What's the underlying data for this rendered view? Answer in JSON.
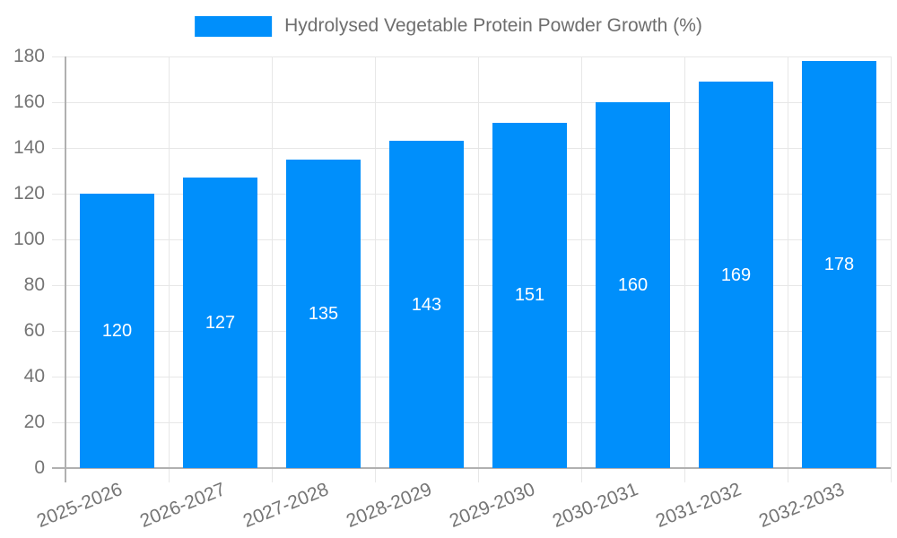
{
  "legend": {
    "label": "Hydrolysed Vegetable Protein Powder Growth (%)"
  },
  "chart_data": {
    "type": "bar",
    "title": "Hydrolysed Vegetable Protein Powder Growth (%)",
    "categories": [
      "2025-2026",
      "2026-2027",
      "2027-2028",
      "2028-2029",
      "2029-2030",
      "2030-2031",
      "2031-2032",
      "2032-2033"
    ],
    "values": [
      120,
      127,
      135,
      143,
      151,
      160,
      169,
      178
    ],
    "xlabel": "",
    "ylabel": "",
    "ylim": [
      0,
      180
    ],
    "ytick_step": 20,
    "yticks": [
      0,
      20,
      40,
      60,
      80,
      100,
      120,
      140,
      160,
      180
    ],
    "grid": true,
    "legend_position": "top",
    "value_labels": "inside-middle",
    "xlabel_rotation_deg": -22,
    "colors": {
      "bar": "#008FFB",
      "grid": "#e7e7e7",
      "axis": "#b0b0b0",
      "tick_label": "#757575",
      "value_label": "#ffffff",
      "legend_text": "#6e6e6e"
    }
  }
}
